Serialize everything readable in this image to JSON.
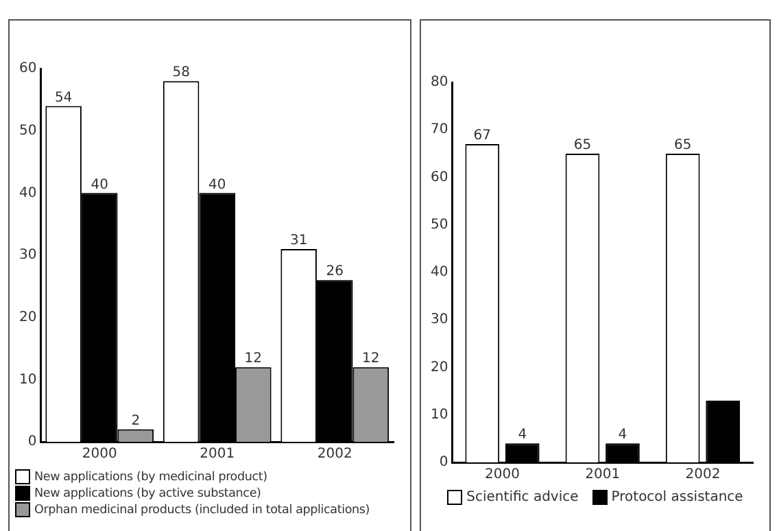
{
  "chart_data": [
    {
      "type": "bar",
      "categories": [
        "2000",
        "2001",
        "2002"
      ],
      "series": [
        {
          "name": "New applications (by medicinal product)",
          "color": "#ffffff",
          "values": [
            54,
            58,
            31
          ]
        },
        {
          "name": "New applications (by active substance)",
          "color": "#000000",
          "values": [
            40,
            40,
            26
          ]
        },
        {
          "name": "Orphan medicinal products (included in total applications)",
          "color": "#999999",
          "values": [
            2,
            12,
            12
          ]
        }
      ],
      "ylim": [
        0,
        60
      ],
      "yticks": [
        0,
        10,
        20,
        30,
        40,
        50,
        60
      ],
      "grid": false,
      "legend": "bottom",
      "data_labels": true
    },
    {
      "type": "bar",
      "categories": [
        "2000",
        "2001",
        "2002"
      ],
      "series": [
        {
          "name": "Scientific advice",
          "color": "#ffffff",
          "values": [
            67,
            65,
            65
          ],
          "value_labels": [
            "67",
            "65",
            "65"
          ]
        },
        {
          "name": "Protocol assistance",
          "color": "#000000",
          "values": [
            4,
            4,
            13
          ],
          "value_labels": [
            "4",
            "4",
            null
          ]
        }
      ],
      "ylim": [
        0,
        80
      ],
      "yticks": [
        0,
        10,
        20,
        30,
        40,
        50,
        60,
        70,
        80
      ],
      "grid": false,
      "legend": "bottom"
    }
  ]
}
